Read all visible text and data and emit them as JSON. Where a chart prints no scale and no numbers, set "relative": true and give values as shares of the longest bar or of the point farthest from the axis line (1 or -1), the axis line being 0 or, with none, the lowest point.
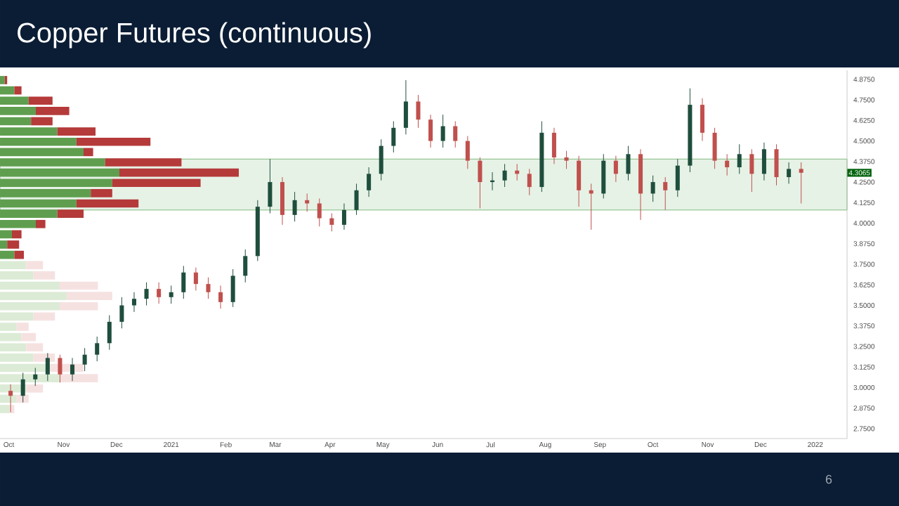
{
  "chart_data": [
    {
      "type": "candlestick",
      "title": "Copper Futures (continuous)",
      "x": [
        "2020-10-02",
        "2020-10-09",
        "2020-10-16",
        "2020-10-23",
        "2020-10-30",
        "2020-11-06",
        "2020-11-13",
        "2020-11-20",
        "2020-11-27",
        "2020-12-04",
        "2020-12-11",
        "2020-12-18",
        "2020-12-25",
        "2021-01-01",
        "2021-01-08",
        "2021-01-15",
        "2021-01-22",
        "2021-01-29",
        "2021-02-05",
        "2021-02-12",
        "2021-02-19",
        "2021-02-26",
        "2021-03-05",
        "2021-03-12",
        "2021-03-19",
        "2021-03-26",
        "2021-04-02",
        "2021-04-09",
        "2021-04-16",
        "2021-04-23",
        "2021-04-30",
        "2021-05-07",
        "2021-05-14",
        "2021-05-21",
        "2021-05-28",
        "2021-06-04",
        "2021-06-11",
        "2021-06-18",
        "2021-06-25",
        "2021-07-02",
        "2021-07-09",
        "2021-07-16",
        "2021-07-23",
        "2021-07-30",
        "2021-08-06",
        "2021-08-13",
        "2021-08-20",
        "2021-08-27",
        "2021-09-03",
        "2021-09-10",
        "2021-09-17",
        "2021-09-24",
        "2021-10-01",
        "2021-10-08",
        "2021-10-15",
        "2021-10-22",
        "2021-10-29",
        "2021-11-05",
        "2021-11-12",
        "2021-11-19",
        "2021-11-26",
        "2021-12-03",
        "2021-12-10",
        "2021-12-17",
        "2021-12-24"
      ],
      "ohlc": [
        [
          2.98,
          3.02,
          2.85,
          2.95
        ],
        [
          2.95,
          3.09,
          2.91,
          3.05
        ],
        [
          3.05,
          3.12,
          3.01,
          3.08
        ],
        [
          3.08,
          3.21,
          3.04,
          3.18
        ],
        [
          3.18,
          3.2,
          3.03,
          3.08
        ],
        [
          3.08,
          3.18,
          3.04,
          3.14
        ],
        [
          3.14,
          3.24,
          3.1,
          3.2
        ],
        [
          3.2,
          3.31,
          3.16,
          3.27
        ],
        [
          3.27,
          3.44,
          3.23,
          3.4
        ],
        [
          3.4,
          3.55,
          3.36,
          3.5
        ],
        [
          3.5,
          3.58,
          3.46,
          3.54
        ],
        [
          3.54,
          3.64,
          3.5,
          3.6
        ],
        [
          3.6,
          3.64,
          3.51,
          3.55
        ],
        [
          3.55,
          3.62,
          3.51,
          3.58
        ],
        [
          3.58,
          3.74,
          3.54,
          3.7
        ],
        [
          3.7,
          3.73,
          3.59,
          3.63
        ],
        [
          3.63,
          3.67,
          3.54,
          3.58
        ],
        [
          3.58,
          3.62,
          3.48,
          3.52
        ],
        [
          3.52,
          3.72,
          3.49,
          3.68
        ],
        [
          3.68,
          3.84,
          3.64,
          3.8
        ],
        [
          3.8,
          4.14,
          3.77,
          4.1
        ],
        [
          4.1,
          4.39,
          4.06,
          4.25
        ],
        [
          4.25,
          4.28,
          3.99,
          4.05
        ],
        [
          4.05,
          4.19,
          4.01,
          4.14
        ],
        [
          4.14,
          4.18,
          4.07,
          4.12
        ],
        [
          4.12,
          4.15,
          3.98,
          4.03
        ],
        [
          4.03,
          4.06,
          3.95,
          3.99
        ],
        [
          3.99,
          4.12,
          3.96,
          4.08
        ],
        [
          4.08,
          4.24,
          4.05,
          4.2
        ],
        [
          4.2,
          4.34,
          4.16,
          4.3
        ],
        [
          4.3,
          4.51,
          4.26,
          4.47
        ],
        [
          4.47,
          4.62,
          4.43,
          4.58
        ],
        [
          4.58,
          4.87,
          4.54,
          4.74
        ],
        [
          4.74,
          4.78,
          4.58,
          4.63
        ],
        [
          4.63,
          4.66,
          4.46,
          4.5
        ],
        [
          4.5,
          4.66,
          4.46,
          4.59
        ],
        [
          4.59,
          4.62,
          4.46,
          4.5
        ],
        [
          4.5,
          4.53,
          4.33,
          4.38
        ],
        [
          4.38,
          4.4,
          4.09,
          4.25
        ],
        [
          4.25,
          4.31,
          4.2,
          4.26
        ],
        [
          4.26,
          4.36,
          4.22,
          4.32
        ],
        [
          4.32,
          4.36,
          4.26,
          4.3
        ],
        [
          4.3,
          4.33,
          4.17,
          4.22
        ],
        [
          4.22,
          4.62,
          4.19,
          4.55
        ],
        [
          4.55,
          4.58,
          4.36,
          4.4
        ],
        [
          4.4,
          4.44,
          4.33,
          4.38
        ],
        [
          4.38,
          4.41,
          4.1,
          4.2
        ],
        [
          4.2,
          4.24,
          3.96,
          4.18
        ],
        [
          4.18,
          4.42,
          4.15,
          4.38
        ],
        [
          4.38,
          4.41,
          4.25,
          4.3
        ],
        [
          4.3,
          4.47,
          4.26,
          4.42
        ],
        [
          4.42,
          4.45,
          4.02,
          4.18
        ],
        [
          4.18,
          4.29,
          4.13,
          4.25
        ],
        [
          4.25,
          4.28,
          4.08,
          4.2
        ],
        [
          4.2,
          4.39,
          4.16,
          4.35
        ],
        [
          4.35,
          4.82,
          4.31,
          4.72
        ],
        [
          4.72,
          4.76,
          4.5,
          4.55
        ],
        [
          4.55,
          4.58,
          4.33,
          4.38
        ],
        [
          4.38,
          4.42,
          4.29,
          4.34
        ],
        [
          4.34,
          4.48,
          4.3,
          4.42
        ],
        [
          4.42,
          4.45,
          4.19,
          4.3
        ],
        [
          4.3,
          4.49,
          4.26,
          4.45
        ],
        [
          4.45,
          4.48,
          4.23,
          4.28
        ],
        [
          4.28,
          4.37,
          4.24,
          4.33
        ],
        [
          4.33,
          4.37,
          4.12,
          4.3065
        ]
      ],
      "xlim": [
        "2020-09-26",
        "2022-01-19"
      ],
      "ylim": [
        2.69,
        4.93
      ],
      "xticks": [
        {
          "value": "2020-10-01",
          "label": "Oct"
        },
        {
          "value": "2020-11-01",
          "label": "Nov"
        },
        {
          "value": "2020-12-01",
          "label": "Dec"
        },
        {
          "value": "2021-01-01",
          "label": "2021"
        },
        {
          "value": "2021-02-01",
          "label": "Feb"
        },
        {
          "value": "2021-03-01",
          "label": "Mar"
        },
        {
          "value": "2021-04-01",
          "label": "Apr"
        },
        {
          "value": "2021-05-01",
          "label": "May"
        },
        {
          "value": "2021-06-01",
          "label": "Jun"
        },
        {
          "value": "2021-07-01",
          "label": "Jul"
        },
        {
          "value": "2021-08-01",
          "label": "Aug"
        },
        {
          "value": "2021-09-01",
          "label": "Sep"
        },
        {
          "value": "2021-10-01",
          "label": "Oct"
        },
        {
          "value": "2021-11-01",
          "label": "Nov"
        },
        {
          "value": "2021-12-01",
          "label": "Dec"
        },
        {
          "value": "2022-01-01",
          "label": "2022"
        }
      ],
      "yticks": [
        {
          "value": 2.75,
          "label": "2.7500"
        },
        {
          "value": 2.875,
          "label": "2.8750"
        },
        {
          "value": 3.0,
          "label": "3.0000"
        },
        {
          "value": 3.125,
          "label": "3.1250"
        },
        {
          "value": 3.25,
          "label": "3.2500"
        },
        {
          "value": 3.375,
          "label": "3.3750"
        },
        {
          "value": 3.5,
          "label": "3.5000"
        },
        {
          "value": 3.625,
          "label": "3.6250"
        },
        {
          "value": 3.75,
          "label": "3.7500"
        },
        {
          "value": 3.875,
          "label": "3.8750"
        },
        {
          "value": 4.0,
          "label": "4.0000"
        },
        {
          "value": 4.125,
          "label": "4.1250"
        },
        {
          "value": 4.25,
          "label": "4.2500"
        },
        {
          "value": 4.375,
          "label": "4.3750"
        },
        {
          "value": 4.5,
          "label": "4.5000"
        },
        {
          "value": 4.625,
          "label": "4.6250"
        },
        {
          "value": 4.75,
          "label": "4.7500"
        },
        {
          "value": 4.875,
          "label": "4.8750"
        }
      ],
      "bands": [
        {
          "axis": "y",
          "from": 4.08,
          "to": 4.39,
          "color": "#e6f2e6"
        }
      ],
      "annotations": [
        {
          "text": "4.3065",
          "y": 4.3065
        },
        "6"
      ]
    },
    {
      "type": "bar",
      "orientation": "horizontal",
      "stacked": true,
      "relative": true,
      "categories": [
        null,
        null,
        null,
        null,
        null,
        null,
        null,
        null,
        null,
        null,
        null,
        null,
        null,
        null,
        null,
        null,
        null,
        null,
        null,
        null,
        null,
        null,
        null,
        null,
        null,
        null,
        null,
        null,
        null,
        null,
        null,
        null,
        null
      ],
      "series": [
        {
          "colors": [
            "#5f9e4f",
            "#5f9e4f",
            "#5f9e4f",
            "#5f9e4f",
            "#5f9e4f",
            "#5f9e4f",
            "#5f9e4f",
            "#5f9e4f",
            "#5f9e4f",
            "#5f9e4f",
            "#5f9e4f",
            "#5f9e4f",
            "#5f9e4f",
            "#5f9e4f",
            "#5f9e4f",
            "#5f9e4f",
            "#5f9e4f",
            "#5f9e4f",
            "#dcebd6",
            "#dcebd6",
            "#dcebd6",
            "#dcebd6",
            "#dcebd6",
            "#dcebd6",
            "#dcebd6",
            "#dcebd6",
            "#dcebd6",
            "#dcebd6",
            "#dcebd6",
            "#dcebd6",
            "#dcebd6",
            "#dcebd6",
            "#dcebd6"
          ],
          "values": [
            0.02,
            0.06,
            0.12,
            0.15,
            0.13,
            0.24,
            0.32,
            0.35,
            0.44,
            0.5,
            0.47,
            0.38,
            0.32,
            0.24,
            0.15,
            0.05,
            0.03,
            0.06,
            0.11,
            0.14,
            0.25,
            0.28,
            0.25,
            0.14,
            0.07,
            0.09,
            0.11,
            0.14,
            0.21,
            0.25,
            0.11,
            0.07,
            0.04
          ]
        },
        {
          "colors": [
            "#b53a3a",
            "#b53a3a",
            "#b53a3a",
            "#b53a3a",
            "#b53a3a",
            "#b53a3a",
            "#b53a3a",
            "#b53a3a",
            "#b53a3a",
            "#b53a3a",
            "#b53a3a",
            "#b53a3a",
            "#b53a3a",
            "#b53a3a",
            "#b53a3a",
            "#b53a3a",
            "#b53a3a",
            "#b53a3a",
            "#f6e1e1",
            "#f6e1e1",
            "#f6e1e1",
            "#f6e1e1",
            "#f6e1e1",
            "#f6e1e1",
            "#f6e1e1",
            "#f6e1e1",
            "#f6e1e1",
            "#f6e1e1",
            "#f6e1e1",
            "#f6e1e1",
            "#f6e1e1",
            "#f6e1e1",
            "#f6e1e1"
          ],
          "values": [
            0.01,
            0.03,
            0.1,
            0.14,
            0.09,
            0.16,
            0.31,
            0.04,
            0.32,
            0.5,
            0.37,
            0.09,
            0.26,
            0.11,
            0.04,
            0.04,
            0.05,
            0.04,
            0.07,
            0.09,
            0.16,
            0.19,
            0.16,
            0.09,
            0.05,
            0.06,
            0.07,
            0.09,
            0.14,
            0.16,
            0.07,
            0.05,
            0.02
          ]
        }
      ]
    }
  ]
}
